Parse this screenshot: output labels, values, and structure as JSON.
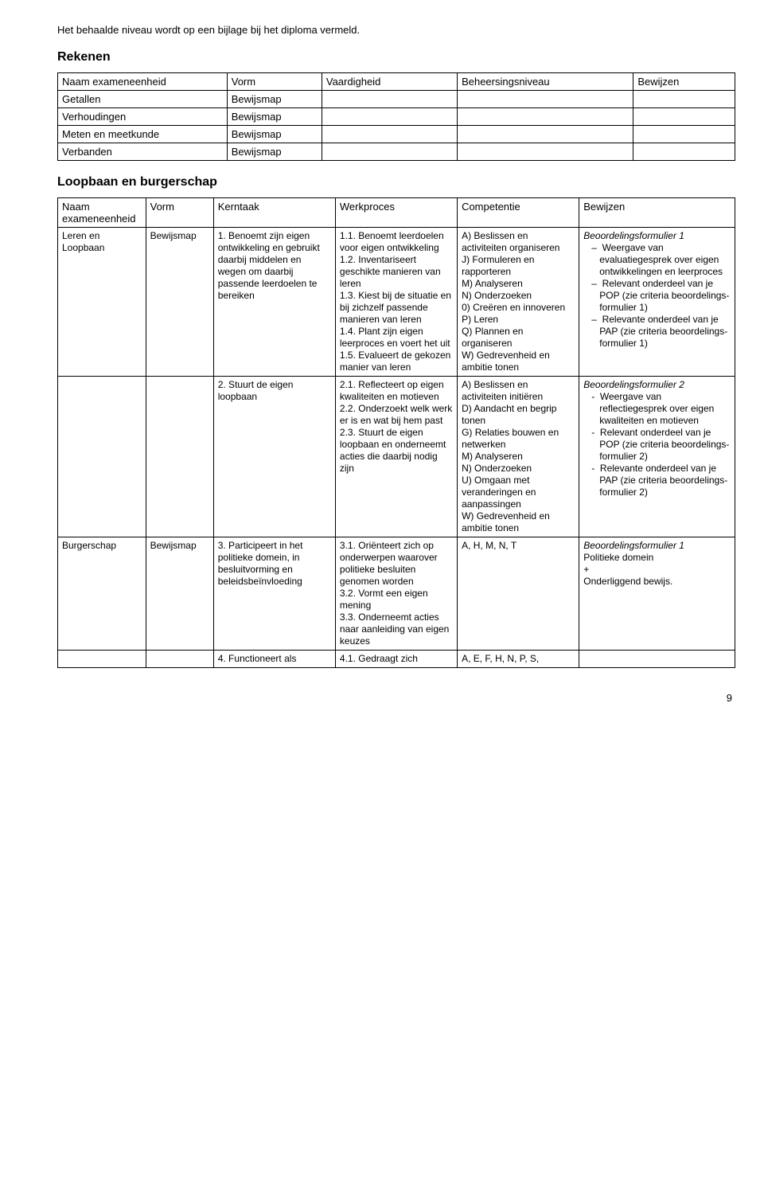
{
  "intro": "Het behaalde niveau wordt op een bijlage bij het diploma vermeld.",
  "section1": {
    "title": "Rekenen",
    "headers": [
      "Naam exameneenheid",
      "Vorm",
      "Vaardigheid",
      "Beheersingsniveau",
      "Bewijzen"
    ],
    "rows": [
      {
        "name": "Getallen",
        "vorm": "Bewijsmap"
      },
      {
        "name": "Verhoudingen",
        "vorm": "Bewijsmap"
      },
      {
        "name": "Meten en meetkunde",
        "vorm": "Bewijsmap"
      },
      {
        "name": "Verbanden",
        "vorm": "Bewijsmap"
      }
    ]
  },
  "section2": {
    "title": "Loopbaan en burgerschap",
    "headers": [
      "Naam exameneenheid",
      "Vorm",
      "Kerntaak",
      "Werkproces",
      "Competentie",
      "Bewijzen"
    ],
    "rows": [
      {
        "c1": "Leren en Loopbaan",
        "c2": "Bewijsmap",
        "c3": "1. Benoemt zijn eigen ontwikkeling en gebruikt daarbij middelen en wegen om daarbij passende leerdoelen te bereiken",
        "c4": "1.1. Benoemt leerdoelen voor eigen ontwikkeling\n1.2. Inventariseert geschikte manieren van leren\n1.3. Kiest bij de situatie en bij zichzelf passende manieren van leren\n1.4. Plant zijn eigen leerproces en voert het uit\n1.5. Evalueert de gekozen manier van leren",
        "c5": "A) Beslissen en activiteiten organiseren\nJ) Formuleren en rapporteren\nM) Analyseren\nN) Onderzoeken\n0) Creëren en innoveren\nP) Leren\nQ) Plannen en organiseren\nW) Gedrevenheid en ambitie tonen",
        "c6_head": "Beoordelingsformulier 1",
        "c6_items": [
          "Weergave van evaluatiegesprek over eigen ontwikkelingen en leerproces",
          "Relevant onderdeel van je POP (zie criteria beoordelings-formulier 1)",
          "Relevante onderdeel van je PAP (zie criteria beoordelings-formulier 1)"
        ],
        "c6_bullet": "–"
      },
      {
        "c1": "",
        "c2": "",
        "c3": "2. Stuurt de eigen loopbaan",
        "c4": "2.1. Reflecteert op eigen kwaliteiten en motieven\n2.2. Onderzoekt welk werk er is en wat bij hem past\n2.3. Stuurt de eigen loopbaan en onderneemt acties die daarbij nodig zijn",
        "c5": "A) Beslissen en activiteiten initiëren\nD) Aandacht en begrip tonen\nG) Relaties bouwen en netwerken\nM) Analyseren\nN) Onderzoeken\nU) Omgaan met veranderingen en aanpassingen\nW) Gedrevenheid en ambitie tonen",
        "c6_head": "Beoordelingsformulier 2",
        "c6_items": [
          "Weergave van reflectiegesprek over eigen kwaliteiten en motieven",
          "Relevant onderdeel van je POP (zie criteria beoordelings-formulier 2)",
          "Relevante onderdeel van je PAP (zie criteria beoordelings-formulier 2)"
        ],
        "c6_bullet": "-"
      },
      {
        "c1": "Burgerschap",
        "c2": "Bewijsmap",
        "c3": "3. Participeert in het politieke domein, in besluitvorming en beleidsbeïnvloeding",
        "c4": "3.1. Oriënteert zich op onderwerpen waarover politieke besluiten genomen worden\n3.2. Vormt een eigen mening\n3.3. Onderneemt acties naar aanleiding van eigen keuzes",
        "c5": "A, H, M, N, T",
        "c6_head": "Beoordelingsformulier 1",
        "c6_plain": "Politieke domein\n+\nOnderliggend bewijs."
      },
      {
        "c1": "",
        "c2": "",
        "c3": "4. Functioneert als",
        "c4": "4.1. Gedraagt zich",
        "c5": "A, E, F, H, N, P, S,",
        "c6_head": ""
      }
    ]
  },
  "pageno": "9"
}
